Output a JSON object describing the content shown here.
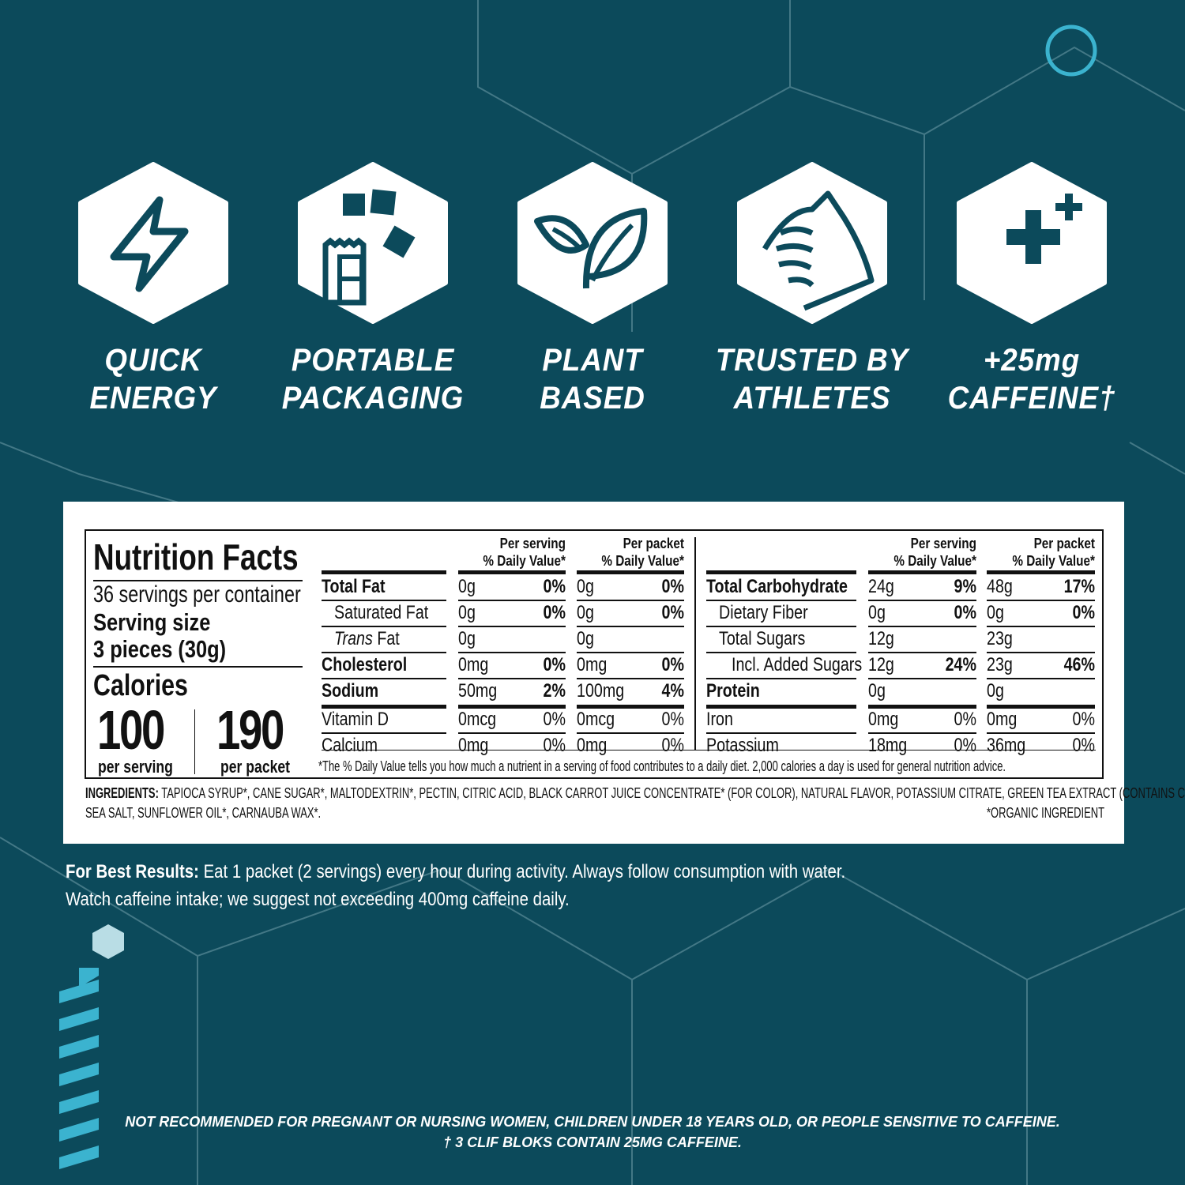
{
  "colors": {
    "background": "#0c4a5b",
    "icon": "#0c4a5b",
    "panel": "#ffffff",
    "accent": "#3bb3cf"
  },
  "features": [
    {
      "icon": "lightning-bolt-icon",
      "lines": [
        "QUICK",
        "ENERGY"
      ]
    },
    {
      "icon": "packet-pieces-icon",
      "lines": [
        "PORTABLE",
        "PACKAGING"
      ]
    },
    {
      "icon": "leaves-icon",
      "lines": [
        "PLANT",
        "BASED"
      ]
    },
    {
      "icon": "handshake-icon",
      "lines": [
        "TRUSTED BY",
        "ATHLETES"
      ]
    },
    {
      "icon": "plus-icon",
      "lines": [
        "+25mg",
        "CAFFEINE†"
      ]
    }
  ],
  "nutrition": {
    "title": "Nutrition Facts",
    "servings": "36 servings per container",
    "serving_size_label": "Serving size",
    "serving_size": "3 pieces (30g)",
    "calories_label": "Calories",
    "calories_serving": "100",
    "calories_serving_label": "per serving",
    "calories_packet": "190",
    "calories_packet_label": "per packet",
    "hdr_serving": [
      "Per serving",
      "% Daily Value*"
    ],
    "hdr_packet": [
      "Per packet",
      "% Daily Value*"
    ],
    "left_rows": [
      {
        "label": "Total Fat",
        "bold": true,
        "indent": 0,
        "s_amt": "0g",
        "s_pct": "0%",
        "p_amt": "0g",
        "p_pct": "0%",
        "pct_bold": true
      },
      {
        "label": "Saturated Fat",
        "bold": false,
        "indent": 1,
        "s_amt": "0g",
        "s_pct": "0%",
        "p_amt": "0g",
        "p_pct": "0%",
        "pct_bold": true
      },
      {
        "label": "Trans Fat",
        "bold": false,
        "indent": 1,
        "italic_first": true,
        "s_amt": "0g",
        "s_pct": "",
        "p_amt": "0g",
        "p_pct": ""
      },
      {
        "label": "Cholesterol",
        "bold": true,
        "indent": 0,
        "s_amt": "0mg",
        "s_pct": "0%",
        "p_amt": "0mg",
        "p_pct": "0%",
        "pct_bold": true
      },
      {
        "label": "Sodium",
        "bold": true,
        "indent": 0,
        "s_amt": "50mg",
        "s_pct": "2%",
        "p_amt": "100mg",
        "p_pct": "4%",
        "pct_bold": true
      },
      {
        "label": "Vitamin D",
        "bold": false,
        "indent": 0,
        "s_amt": "0mcg",
        "s_pct": "0%",
        "p_amt": "0mcg",
        "p_pct": "0%"
      },
      {
        "label": "Calcium",
        "bold": false,
        "indent": 0,
        "s_amt": "0mg",
        "s_pct": "0%",
        "p_amt": "0mg",
        "p_pct": "0%"
      }
    ],
    "right_rows": [
      {
        "label": "Total Carbohydrate",
        "bold": true,
        "indent": 0,
        "s_amt": "24g",
        "s_pct": "9%",
        "p_amt": "48g",
        "p_pct": "17%",
        "pct_bold": true
      },
      {
        "label": "Dietary Fiber",
        "bold": false,
        "indent": 1,
        "s_amt": "0g",
        "s_pct": "0%",
        "p_amt": "0g",
        "p_pct": "0%",
        "pct_bold": true
      },
      {
        "label": "Total Sugars",
        "bold": false,
        "indent": 1,
        "s_amt": "12g",
        "s_pct": "",
        "p_amt": "23g",
        "p_pct": ""
      },
      {
        "label": "Incl. Added Sugars",
        "bold": false,
        "indent": 2,
        "s_amt": "12g",
        "s_pct": "24%",
        "p_amt": "23g",
        "p_pct": "46%",
        "pct_bold": true
      },
      {
        "label": "Protein",
        "bold": true,
        "indent": 0,
        "s_amt": "0g",
        "s_pct": "",
        "p_amt": "0g",
        "p_pct": ""
      },
      {
        "label": "Iron",
        "bold": false,
        "indent": 0,
        "s_amt": "0mg",
        "s_pct": "0%",
        "p_amt": "0mg",
        "p_pct": "0%"
      },
      {
        "label": "Potassium",
        "bold": false,
        "indent": 0,
        "s_amt": "18mg",
        "s_pct": "0%",
        "p_amt": "36mg",
        "p_pct": "0%"
      }
    ],
    "footnote": "*The % Daily Value tells you how much a nutrient in a serving of food contributes to a daily diet. 2,000 calories a day is used for general nutrition advice."
  },
  "ingredients": {
    "label": "INGREDIENTS:",
    "line1": "TAPIOCA SYRUP*, CANE SUGAR*, MALTODEXTRIN*, PECTIN, CITRIC ACID, BLACK CARROT JUICE CONCENTRATE* (FOR COLOR), NATURAL FLAVOR, POTASSIUM CITRATE, GREEN TEA EXTRACT (CONTAINS CAFFEINE),",
    "line2": "SEA SALT, SUNFLOWER OIL*, CARNAUBA WAX*.",
    "organic": "*ORGANIC INGREDIENT"
  },
  "best_results": {
    "label": "For Best Results:",
    "line1": "Eat 1 packet (2 servings) every hour during activity. Always follow consumption with water.",
    "line2": "Watch caffeine intake; we suggest not exceeding 400mg caffeine daily."
  },
  "warnings": [
    "NOT RECOMMENDED FOR PREGNANT OR NURSING WOMEN, CHILDREN UNDER 18 YEARS OLD, OR PEOPLE SENSITIVE TO CAFFEINE.",
    "† 3 CLIF BLOKS CONTAIN 25MG CAFFEINE."
  ]
}
